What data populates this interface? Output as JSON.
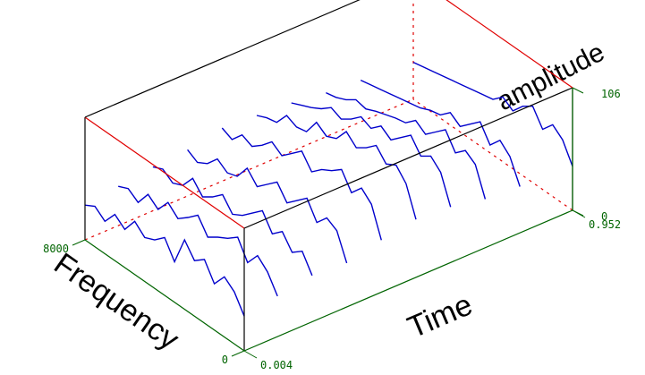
{
  "chart_data": {
    "type": "waterfall",
    "x_label": "Frequency",
    "y_label": "Time",
    "z_label": "amplitude",
    "xlim": [
      0,
      8000
    ],
    "xticks": [
      0,
      8000
    ],
    "ylim": [
      0.004,
      0.952
    ],
    "yticks": [
      0.004,
      0.952
    ],
    "zlim": [
      0,
      106
    ],
    "zticks": [
      0,
      106
    ],
    "color": "#0000cc",
    "x": [
      0,
      500,
      1000,
      1500,
      2000,
      2500,
      3000,
      3500,
      4000,
      4500,
      5000,
      5500,
      6000,
      6500,
      7000,
      7500,
      8000
    ],
    "series": [
      {
        "time": 0.004,
        "values": [
          30,
          45,
          52,
          40,
          55,
          48,
          60,
          35,
          50,
          42,
          38,
          46,
          33,
          40,
          28,
          35,
          30
        ]
      },
      {
        "time": 0.1,
        "values": [
          35,
          50,
          58,
          46,
          62,
          55,
          50,
          44,
          57,
          49,
          42,
          50,
          38,
          45,
          32,
          38,
          34
        ]
      },
      {
        "time": 0.2,
        "values": [
          40,
          55,
          48,
          60,
          52,
          66,
          58,
          50,
          45,
          56,
          48,
          42,
          52,
          40,
          36,
          42,
          38
        ]
      },
      {
        "time": 0.3,
        "values": [
          38,
          60,
          65,
          55,
          70,
          62,
          54,
          66,
          58,
          50,
          60,
          47,
          44,
          50,
          40,
          35,
          40
        ]
      },
      {
        "time": 0.4,
        "values": [
          45,
          70,
          78,
          68,
          82,
          75,
          70,
          62,
          74,
          66,
          58,
          64,
          55,
          48,
          52,
          42,
          46
        ]
      },
      {
        "time": 0.5,
        "values": [
          50,
          75,
          85,
          80,
          90,
          82,
          76,
          84,
          72,
          68,
          74,
          60,
          58,
          62,
          50,
          48,
          44
        ]
      },
      {
        "time": 0.6,
        "values": [
          48,
          72,
          80,
          74,
          86,
          78,
          70,
          76,
          68,
          72,
          64,
          58,
          62,
          55,
          50,
          46,
          42
        ]
      },
      {
        "time": 0.7,
        "values": [
          42,
          66,
          72,
          64,
          78,
          70,
          62,
          68,
          60,
          58,
          55,
          52,
          48,
          50,
          44,
          40,
          38
        ]
      },
      {
        "time": 0.8,
        "values": [
          40,
          60,
          68,
          58,
          72,
          64,
          56,
          62,
          54,
          52,
          48,
          46,
          44,
          42,
          40,
          38,
          36
        ]
      },
      {
        "time": 0.952,
        "values": [
          38,
          55,
          62,
          52,
          66,
          60,
          50,
          56,
          48,
          46,
          44,
          42,
          40,
          38,
          36,
          34,
          32
        ]
      }
    ]
  }
}
